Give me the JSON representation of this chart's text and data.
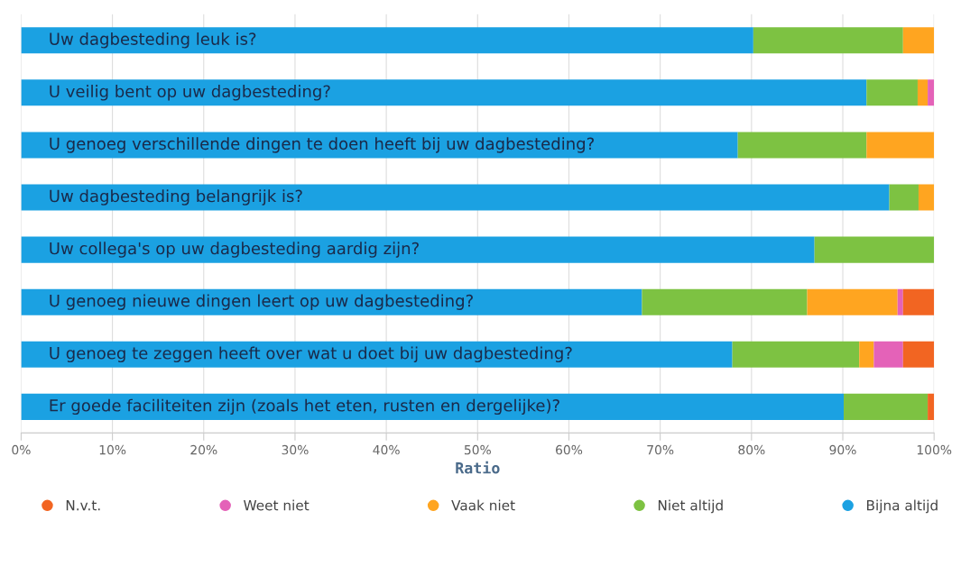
{
  "chart_data": {
    "type": "bar",
    "orientation": "horizontal",
    "stacked": true,
    "xlabel": "Ratio",
    "categories": [
      "Uw dagbesteding leuk is?",
      "U veilig bent op uw dagbesteding?",
      "U genoeg verschillende dingen te doen heeft bij uw dagbesteding?",
      "Uw dagbesteding belangrijk is?",
      "Uw collega's op uw dagbesteding aardig zijn?",
      "U genoeg nieuwe dingen leert op uw dagbesteding?",
      "U genoeg te zeggen heeft over wat u doet bij uw dagbesteding?",
      "Er goede faciliteiten zijn (zoals het eten, rusten en dergelijke)?"
    ],
    "series": [
      {
        "name": "Bijna altijd",
        "color": "#1ba1e2",
        "values": [
          80.2,
          92.6,
          78.5,
          95.1,
          86.9,
          68.0,
          77.9,
          90.1
        ]
      },
      {
        "name": "Niet altijd",
        "color": "#7dc242",
        "values": [
          16.4,
          5.6,
          14.1,
          3.2,
          13.1,
          18.1,
          13.9,
          9.2
        ]
      },
      {
        "name": "Vaak niet",
        "color": "#ffa520",
        "values": [
          3.4,
          1.1,
          7.4,
          1.7,
          0,
          9.9,
          1.6,
          0
        ]
      },
      {
        "name": "Weet niet",
        "color": "#e462b8",
        "values": [
          0,
          0.7,
          0,
          0,
          0,
          0.6,
          3.2,
          0
        ]
      },
      {
        "name": "N.v.t.",
        "color": "#f26522",
        "values": [
          0,
          0,
          0,
          0,
          0,
          3.4,
          3.4,
          0.7
        ]
      }
    ],
    "xlim": [
      0,
      100
    ],
    "xticks": [
      {
        "value": 0,
        "label": "0%"
      },
      {
        "value": 10,
        "label": "10%"
      },
      {
        "value": 20,
        "label": "20%"
      },
      {
        "value": 30,
        "label": "30%"
      },
      {
        "value": 40,
        "label": "40%"
      },
      {
        "value": 50,
        "label": "50%"
      },
      {
        "value": 60,
        "label": "60%"
      },
      {
        "value": 70,
        "label": "70%"
      },
      {
        "value": 80,
        "label": "80%"
      },
      {
        "value": 90,
        "label": "90%"
      },
      {
        "value": 100,
        "label": "100%"
      }
    ],
    "grid": "x",
    "legend": "bottom"
  }
}
